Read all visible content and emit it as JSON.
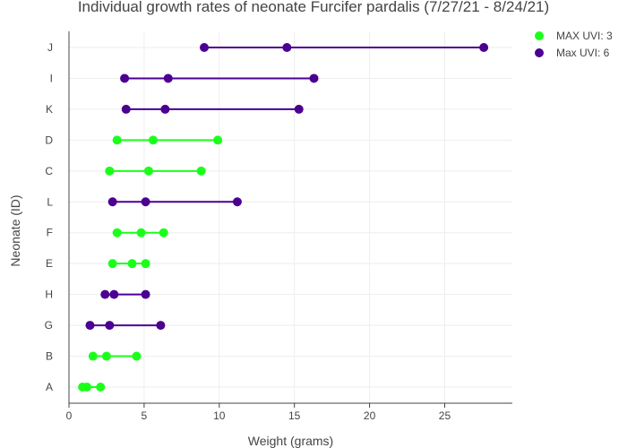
{
  "chart_data": {
    "type": "scatter",
    "title": "Individual growth rates of neonate Furcifer pardalis (7/27/21 - 8/24/21)",
    "xlabel": "Weight (grams)",
    "ylabel": "Neonate (ID)",
    "xlim": [
      0,
      29.5
    ],
    "x_ticks": [
      0,
      5,
      10,
      15,
      20,
      25
    ],
    "categories": [
      "A",
      "B",
      "G",
      "H",
      "E",
      "F",
      "L",
      "C",
      "D",
      "K",
      "I",
      "J"
    ],
    "grid": true,
    "legend_position": "top-right",
    "series": [
      {
        "name": "MAX UVI: 3",
        "color": "#1aff1a",
        "points": {
          "A": [
            0.9,
            1.2,
            2.1
          ],
          "B": [
            1.6,
            2.5,
            4.5
          ],
          "E": [
            2.9,
            4.2,
            5.1
          ],
          "F": [
            3.2,
            4.8,
            6.3
          ],
          "C": [
            2.7,
            5.3,
            8.8
          ],
          "D": [
            3.2,
            5.6,
            9.9
          ]
        }
      },
      {
        "name": "Max UVI: 6",
        "color": "#4b0092",
        "points": {
          "G": [
            1.4,
            2.7,
            6.1
          ],
          "H": [
            2.4,
            3.0,
            5.1
          ],
          "L": [
            2.9,
            5.1,
            11.2
          ],
          "K": [
            3.8,
            6.4,
            15.3
          ],
          "I": [
            3.7,
            6.6,
            16.3
          ],
          "J": [
            9.0,
            14.5,
            27.6
          ]
        }
      }
    ]
  }
}
